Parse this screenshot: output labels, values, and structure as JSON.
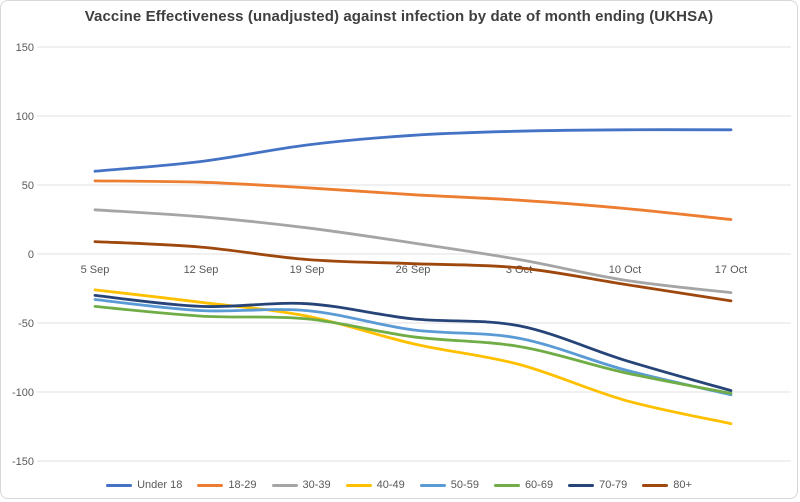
{
  "chart_data": {
    "type": "line",
    "title": "Vaccine Effectiveness (unadjusted) against infection by date of month ending (UKHSA)",
    "xlabel": "",
    "ylabel": "",
    "ylim": [
      -150,
      150
    ],
    "y_ticks": [
      150,
      100,
      50,
      0,
      -50,
      -100,
      -150
    ],
    "grid": true,
    "smoothed_lines": true,
    "legend_position": "bottom",
    "categories": [
      "5 Sep",
      "12 Sep",
      "19 Sep",
      "26 Sep",
      "3 Oct",
      "10 Oct",
      "17 Oct"
    ],
    "series": [
      {
        "name": "Under 18",
        "color": "#4472C4",
        "values": [
          60,
          67,
          79,
          86,
          89,
          90,
          90
        ]
      },
      {
        "name": "18-29",
        "color": "#ED7D31",
        "values": [
          53,
          52,
          48,
          43,
          39,
          33,
          25
        ]
      },
      {
        "name": "30-39",
        "color": "#A5A5A5",
        "values": [
          32,
          27,
          19,
          8,
          -4,
          -19,
          -28
        ]
      },
      {
        "name": "40-49",
        "color": "#FFC000",
        "values": [
          -26,
          -35,
          -45,
          -65,
          -80,
          -106,
          -123
        ]
      },
      {
        "name": "50-59",
        "color": "#5B9BD5",
        "values": [
          -33,
          -41,
          -41,
          -55,
          -61,
          -84,
          -102
        ]
      },
      {
        "name": "60-69",
        "color": "#70AD47",
        "values": [
          -38,
          -45,
          -47,
          -60,
          -67,
          -86,
          -101
        ]
      },
      {
        "name": "70-79",
        "color": "#264478",
        "values": [
          -30,
          -38,
          -36,
          -47,
          -52,
          -77,
          -99
        ]
      },
      {
        "name": "80+",
        "color": "#9E480E",
        "values": [
          9,
          5,
          -4,
          -7,
          -10,
          -22,
          -34
        ]
      }
    ],
    "style_colors": {
      "title_text": "#3f3f3f",
      "axis_text": "#595959",
      "gridline": "#e2e2e2"
    }
  }
}
